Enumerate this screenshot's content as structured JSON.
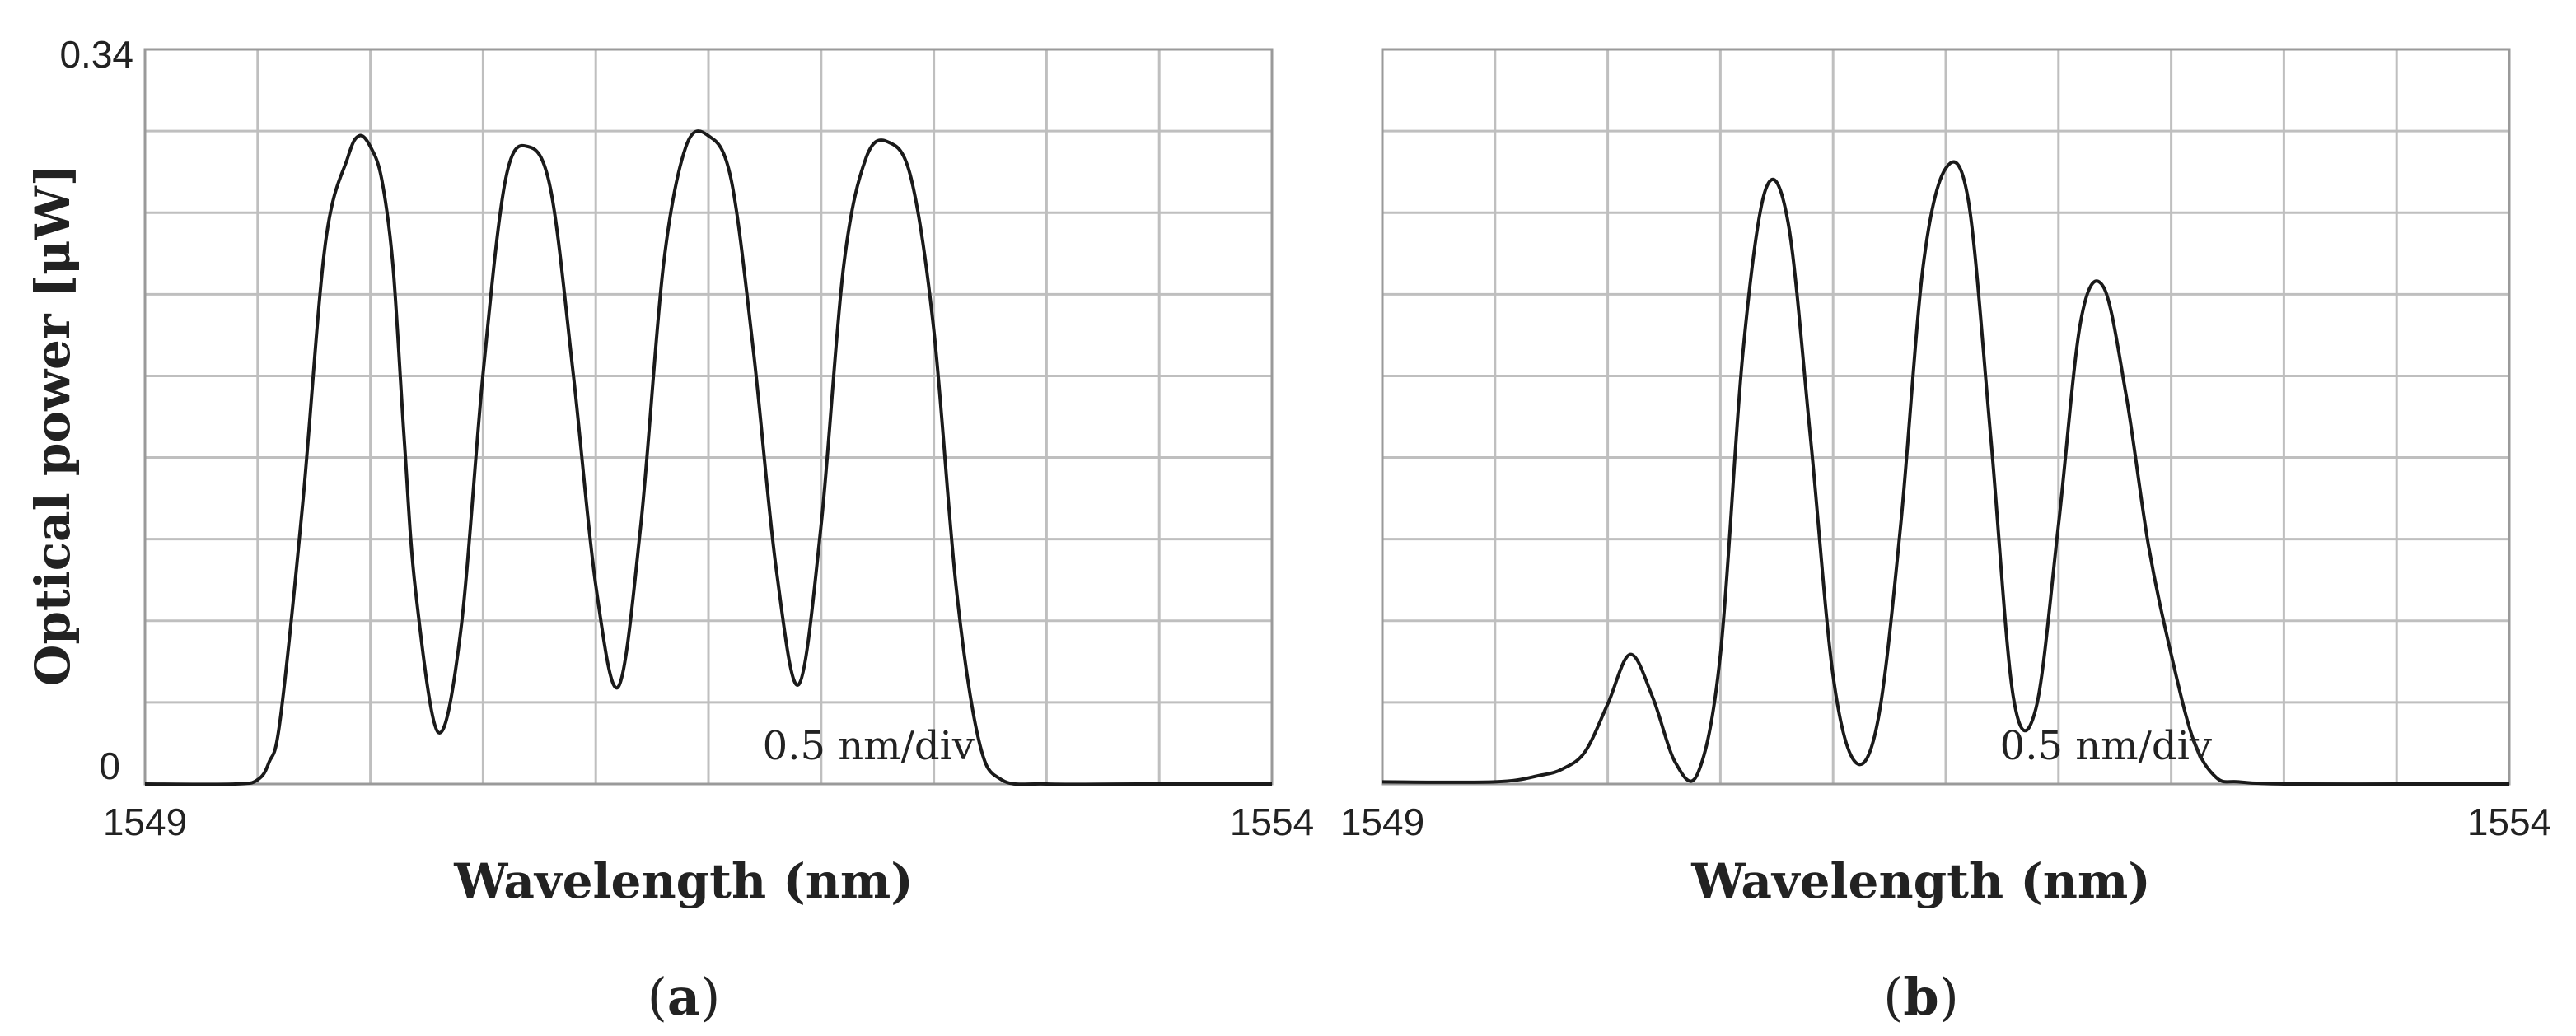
{
  "chart_data": [
    {
      "type": "line",
      "panel_label_open": "(",
      "panel_label_letter": "a",
      "panel_label_close": ")",
      "xlabel": "Wavelength (nm)",
      "ylabel": "Optical power [μW]",
      "x_tick_labels": [
        "1549",
        "1554"
      ],
      "y_tick_labels": [
        "0",
        "0.34"
      ],
      "annotation": "0.5 nm/div",
      "xlim": [
        1549,
        1554
      ],
      "ylim": [
        0,
        0.34
      ],
      "grid": true,
      "series": [
        {
          "x": [
            1549.0,
            1549.4,
            1549.5,
            1549.55,
            1549.6,
            1549.7,
            1549.8,
            1549.9,
            1549.95,
            1550.0,
            1550.05,
            1550.1,
            1550.15,
            1550.2,
            1550.3,
            1550.4,
            1550.5,
            1550.6,
            1550.7,
            1550.8,
            1550.9,
            1551.0,
            1551.1,
            1551.2,
            1551.3,
            1551.4,
            1551.5,
            1551.6,
            1551.7,
            1551.8,
            1551.9,
            1552.0,
            1552.1,
            1552.2,
            1552.3,
            1552.4,
            1552.5,
            1552.6,
            1552.7,
            1552.8,
            1553.0,
            1553.4,
            1554.0
          ],
          "y": [
            0.0,
            0.0,
            0.002,
            0.01,
            0.03,
            0.13,
            0.25,
            0.29,
            0.3,
            0.295,
            0.28,
            0.24,
            0.16,
            0.09,
            0.024,
            0.07,
            0.19,
            0.28,
            0.295,
            0.275,
            0.19,
            0.092,
            0.045,
            0.12,
            0.24,
            0.295,
            0.3,
            0.28,
            0.2,
            0.1,
            0.046,
            0.12,
            0.24,
            0.29,
            0.297,
            0.28,
            0.21,
            0.09,
            0.02,
            0.002,
            0.0,
            0.0,
            0.0
          ]
        }
      ]
    },
    {
      "type": "line",
      "panel_label_open": "(",
      "panel_label_letter": "b",
      "panel_label_close": ")",
      "xlabel": "Wavelength (nm)",
      "x_tick_labels": [
        "1549",
        "1554"
      ],
      "annotation": "0.5 nm/div",
      "xlim": [
        1549,
        1554
      ],
      "ylim": [
        0,
        0.34
      ],
      "grid": true,
      "series": [
        {
          "x": [
            1549.0,
            1549.5,
            1549.7,
            1549.8,
            1549.9,
            1550.0,
            1550.1,
            1550.2,
            1550.3,
            1550.4,
            1550.5,
            1550.6,
            1550.7,
            1550.8,
            1550.9,
            1551.0,
            1551.1,
            1551.2,
            1551.3,
            1551.4,
            1551.5,
            1551.6,
            1551.7,
            1551.8,
            1551.9,
            1552.0,
            1552.1,
            1552.2,
            1552.3,
            1552.4,
            1552.5,
            1552.6,
            1552.7,
            1552.8,
            1553.0,
            1553.5,
            1554.0
          ],
          "y": [
            0.001,
            0.001,
            0.004,
            0.007,
            0.015,
            0.037,
            0.06,
            0.04,
            0.01,
            0.005,
            0.06,
            0.2,
            0.275,
            0.26,
            0.16,
            0.05,
            0.01,
            0.03,
            0.12,
            0.24,
            0.285,
            0.27,
            0.16,
            0.04,
            0.035,
            0.12,
            0.215,
            0.23,
            0.18,
            0.11,
            0.06,
            0.02,
            0.003,
            0.001,
            0.0,
            0.0,
            0.0
          ]
        }
      ]
    }
  ]
}
